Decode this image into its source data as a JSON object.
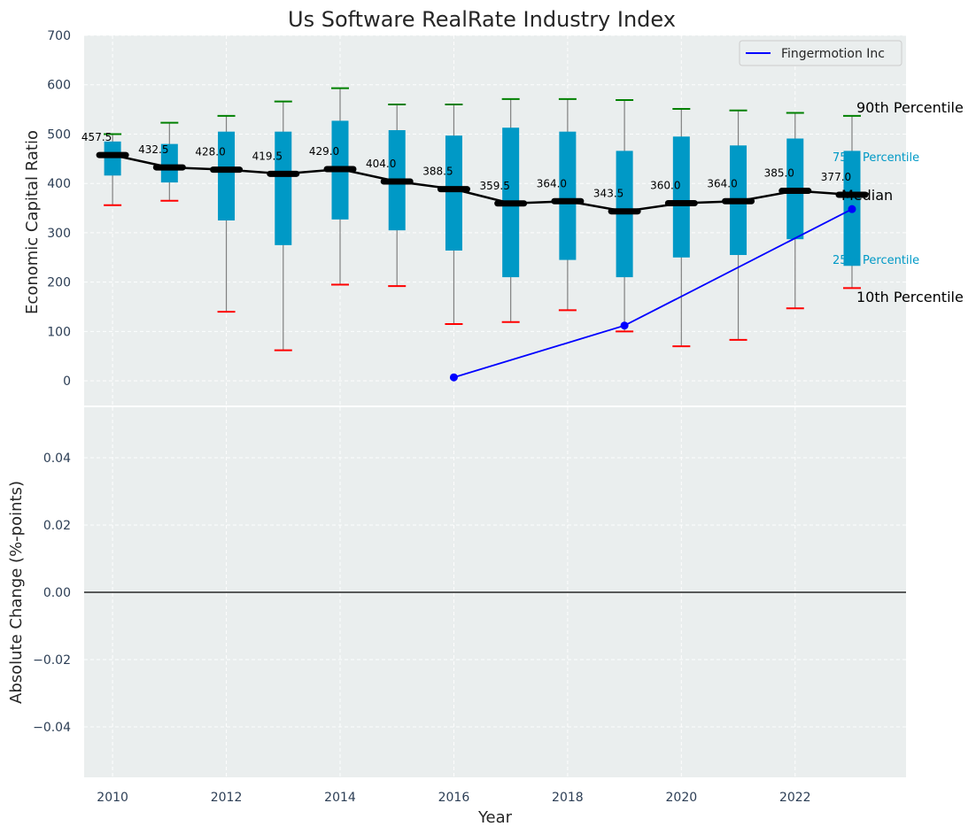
{
  "chart_data": {
    "type": "box",
    "title": "Us Software RealRate Industry Index",
    "xlabel": "Year",
    "x_ticks": [
      "2010",
      "2012",
      "2014",
      "2016",
      "2018",
      "2020",
      "2022"
    ],
    "top_panel": {
      "ylabel": "Economic Capital Ratio",
      "ylim": [
        -50,
        700
      ],
      "y_ticks": [
        "0",
        "100",
        "200",
        "300",
        "400",
        "500",
        "600",
        "700"
      ],
      "years": [
        2010,
        2011,
        2012,
        2013,
        2014,
        2015,
        2016,
        2017,
        2018,
        2019,
        2020,
        2021,
        2022,
        2023
      ],
      "p10": [
        356,
        365,
        140,
        62,
        195,
        192,
        115,
        119,
        143,
        100,
        70,
        83,
        147,
        188
      ],
      "p25": [
        416,
        402,
        325,
        275,
        327,
        305,
        264,
        210,
        245,
        210,
        250,
        255,
        287,
        233
      ],
      "median": [
        457.5,
        432.5,
        428.0,
        419.5,
        429.0,
        404.0,
        388.5,
        359.5,
        364.0,
        343.5,
        360.0,
        364.0,
        385.0,
        377.0
      ],
      "median_labels": [
        "457.5",
        "432.5",
        "428.0",
        "419.5",
        "429.0",
        "404.0",
        "388.5",
        "359.5",
        "364.0",
        "343.5",
        "360.0",
        "364.0",
        "385.0",
        "377.0"
      ],
      "p75": [
        485,
        480,
        505,
        505,
        527,
        508,
        497,
        513,
        505,
        466,
        495,
        477,
        491,
        466
      ],
      "p90": [
        500,
        523,
        537,
        566,
        593,
        560,
        560,
        571,
        571,
        569,
        551,
        548,
        543,
        537
      ],
      "series": [
        {
          "name": "Fingermotion Inc",
          "x": [
            2016,
            2019,
            2023
          ],
          "y": [
            7,
            112,
            348
          ]
        }
      ],
      "annotations": {
        "p90": "90th Percentile",
        "p75": "75th Percentile",
        "median": "Median",
        "p25": "25th Percentile",
        "p10": "10th Percentile"
      },
      "legend_position": "top-right"
    },
    "bottom_panel": {
      "ylabel": "Absolute Change (%-points)",
      "ylim": [
        -0.055,
        0.055
      ],
      "y_ticks": [
        "−0.04",
        "−0.02",
        "0.00",
        "0.02",
        "0.04"
      ],
      "y_tick_values": [
        -0.04,
        -0.02,
        0.0,
        0.02,
        0.04
      ],
      "zero_line": true
    },
    "colors": {
      "box": "#0099c6",
      "whisker": "#808080",
      "p90_cap": "#008000",
      "p10_cap": "#ff0000",
      "median_line": "#000000",
      "company": "#0000ff",
      "panel_bg": "#eaeeee"
    }
  }
}
